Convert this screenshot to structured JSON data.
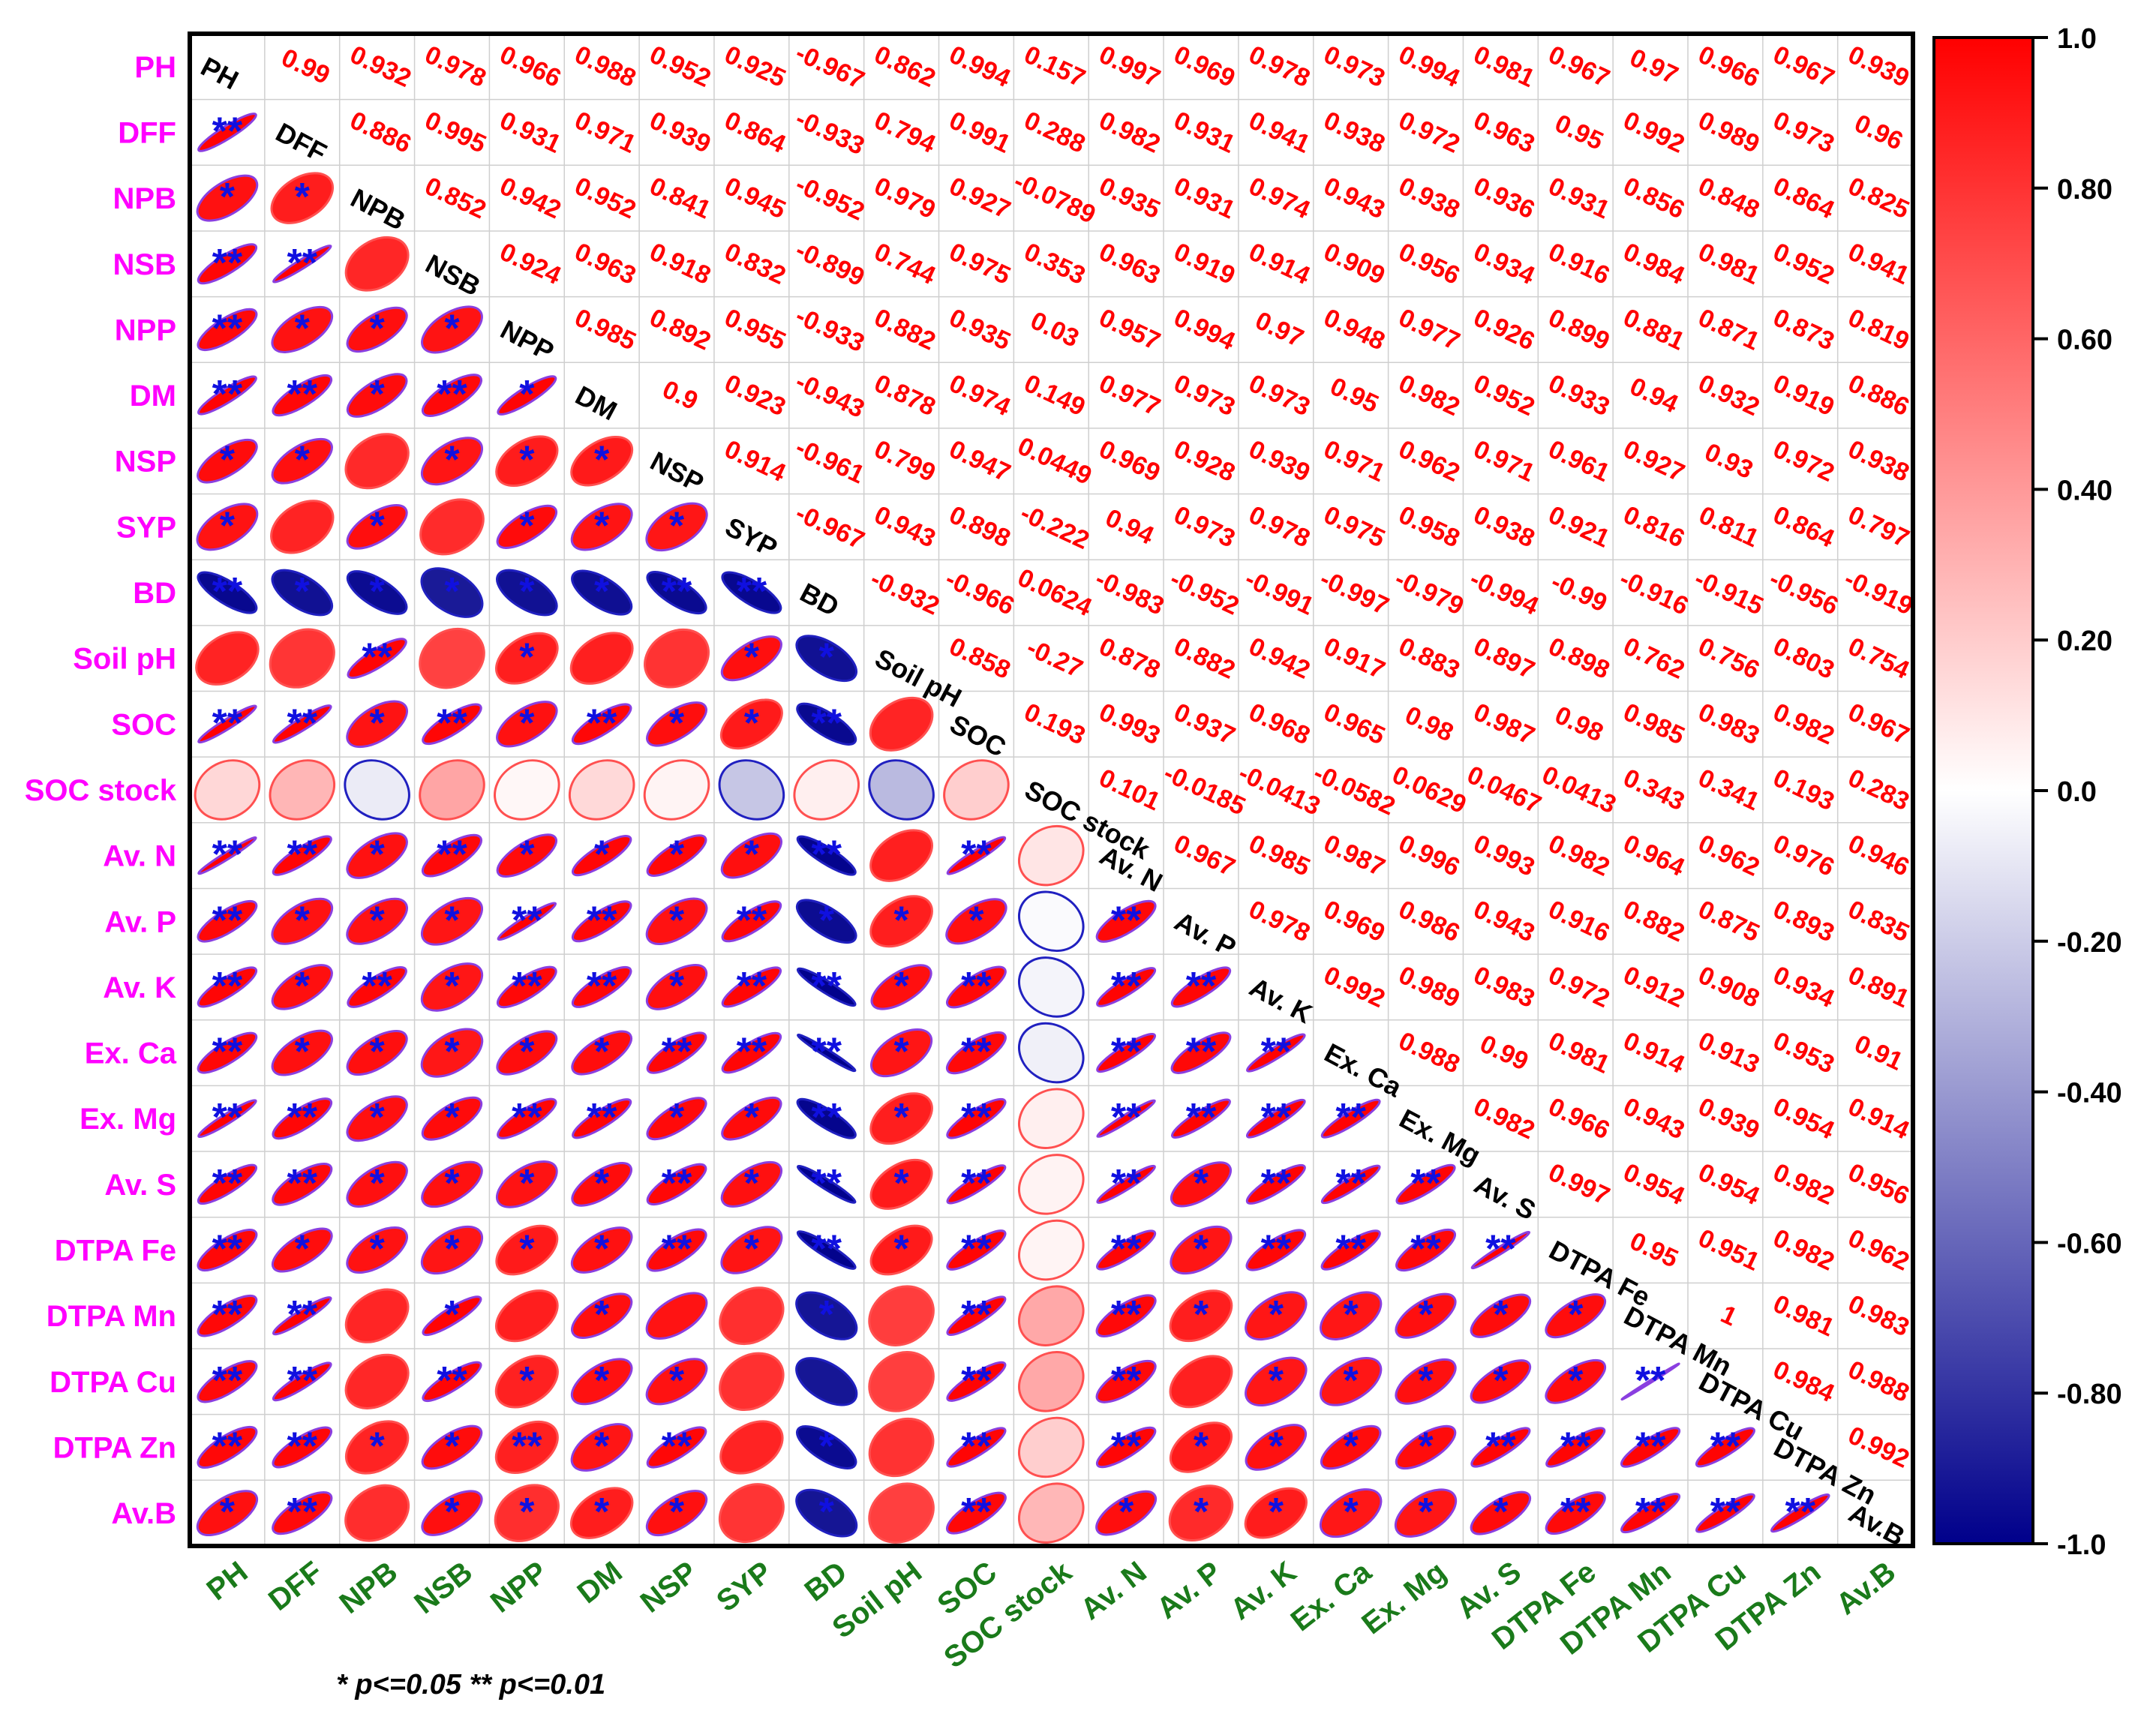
{
  "chart_data": {
    "type": "heatmap",
    "variables": [
      "PH",
      "DFF",
      "NPB",
      "NSB",
      "NPP",
      "DM",
      "NSP",
      "SYP",
      "BD",
      "Soil pH",
      "SOC",
      "SOC stock",
      "Av. N",
      "Av. P",
      "Av. K",
      "Ex. Ca",
      "Ex. Mg",
      "Av. S",
      "DTPA Fe",
      "DTPA Mn",
      "DTPA Cu",
      "DTPA Zn",
      "Av.B"
    ],
    "upper_labels": [
      [
        "0.99",
        "0.932",
        "0.978",
        "0.966",
        "0.988",
        "0.952",
        "0.925",
        "-0.967",
        "0.862",
        "0.994",
        "0.157",
        "0.997",
        "0.969",
        "0.978",
        "0.973",
        "0.994",
        "0.981",
        "0.967",
        "0.97",
        "0.966",
        "0.967",
        "0.939"
      ],
      [
        "0.886",
        "0.995",
        "0.931",
        "0.971",
        "0.939",
        "0.864",
        "-0.933",
        "0.794",
        "0.991",
        "0.288",
        "0.982",
        "0.931",
        "0.941",
        "0.938",
        "0.972",
        "0.963",
        "0.95",
        "0.992",
        "0.989",
        "0.973",
        "0.96"
      ],
      [
        "0.852",
        "0.942",
        "0.952",
        "0.841",
        "0.945",
        "-0.952",
        "0.979",
        "0.927",
        "-0.0789",
        "0.935",
        "0.931",
        "0.974",
        "0.943",
        "0.938",
        "0.936",
        "0.931",
        "0.856",
        "0.848",
        "0.864",
        "0.825"
      ],
      [
        "0.924",
        "0.963",
        "0.918",
        "0.832",
        "-0.899",
        "0.744",
        "0.975",
        "0.353",
        "0.963",
        "0.919",
        "0.914",
        "0.909",
        "0.956",
        "0.934",
        "0.916",
        "0.984",
        "0.981",
        "0.952",
        "0.941"
      ],
      [
        "0.985",
        "0.892",
        "0.955",
        "-0.933",
        "0.882",
        "0.935",
        "0.03",
        "0.957",
        "0.994",
        "0.97",
        "0.948",
        "0.977",
        "0.926",
        "0.899",
        "0.881",
        "0.871",
        "0.873",
        "0.819"
      ],
      [
        "0.9",
        "0.923",
        "-0.943",
        "0.878",
        "0.974",
        "0.149",
        "0.977",
        "0.973",
        "0.973",
        "0.95",
        "0.982",
        "0.952",
        "0.933",
        "0.94",
        "0.932",
        "0.919",
        "0.886"
      ],
      [
        "0.914",
        "-0.961",
        "0.799",
        "0.947",
        "0.0449",
        "0.969",
        "0.928",
        "0.939",
        "0.971",
        "0.962",
        "0.971",
        "0.961",
        "0.927",
        "0.93",
        "0.972",
        "0.938"
      ],
      [
        "-0.967",
        "0.943",
        "0.898",
        "-0.222",
        "0.94",
        "0.973",
        "0.978",
        "0.975",
        "0.958",
        "0.938",
        "0.921",
        "0.816",
        "0.811",
        "0.864",
        "0.797"
      ],
      [
        "-0.932",
        "-0.966",
        "0.0624",
        "-0.983",
        "-0.952",
        "-0.991",
        "-0.997",
        "-0.979",
        "-0.994",
        "-0.99",
        "-0.916",
        "-0.915",
        "-0.956",
        "-0.919"
      ],
      [
        "0.858",
        "-0.27",
        "0.878",
        "0.882",
        "0.942",
        "0.917",
        "0.883",
        "0.897",
        "0.898",
        "0.762",
        "0.756",
        "0.803",
        "0.754"
      ],
      [
        "0.193",
        "0.993",
        "0.937",
        "0.968",
        "0.965",
        "0.98",
        "0.987",
        "0.98",
        "0.985",
        "0.983",
        "0.982",
        "0.967"
      ],
      [
        "0.101",
        "-0.0185",
        "-0.0413",
        "-0.0582",
        "0.0629",
        "0.0467",
        "0.0413",
        "0.343",
        "0.341",
        "0.193",
        "0.283"
      ],
      [
        "0.967",
        "0.985",
        "0.987",
        "0.996",
        "0.993",
        "0.982",
        "0.964",
        "0.962",
        "0.976",
        "0.946"
      ],
      [
        "0.978",
        "0.969",
        "0.986",
        "0.943",
        "0.916",
        "0.882",
        "0.875",
        "0.893",
        "0.835"
      ],
      [
        "0.992",
        "0.989",
        "0.983",
        "0.972",
        "0.912",
        "0.908",
        "0.934",
        "0.891"
      ],
      [
        "0.988",
        "0.99",
        "0.981",
        "0.914",
        "0.913",
        "0.953",
        "0.91"
      ],
      [
        "0.982",
        "0.966",
        "0.943",
        "0.939",
        "0.954",
        "0.914"
      ],
      [
        "0.997",
        "0.954",
        "0.954",
        "0.982",
        "0.956"
      ],
      [
        "0.95",
        "0.951",
        "0.982",
        "0.962"
      ],
      [
        "1",
        "0.981",
        "0.983"
      ],
      [
        "0.984",
        "0.988"
      ],
      [
        "0.992"
      ]
    ],
    "significance": [
      [
        "**"
      ],
      [
        "*",
        "*"
      ],
      [
        "**",
        "**",
        ""
      ],
      [
        "**",
        "*",
        "*",
        "*"
      ],
      [
        "**",
        "**",
        "*",
        "**",
        "*"
      ],
      [
        "*",
        "*",
        "",
        "*",
        "*",
        "*"
      ],
      [
        "*",
        "",
        "*",
        "",
        "*",
        "*",
        "*"
      ],
      [
        "**",
        "*",
        "*",
        "*",
        "*",
        "*",
        "**",
        "**"
      ],
      [
        "",
        "",
        "**",
        "",
        "*",
        "",
        "",
        "*",
        "*"
      ],
      [
        "**",
        "**",
        "*",
        "**",
        "*",
        "**",
        "*",
        "*",
        "**",
        ""
      ],
      [
        "",
        "",
        "",
        "",
        "",
        "",
        "",
        "",
        "",
        "",
        ""
      ],
      [
        "**",
        "**",
        "*",
        "**",
        "*",
        "*",
        "*",
        "*",
        "**",
        "",
        "**",
        ""
      ],
      [
        "**",
        "*",
        "*",
        "*",
        "**",
        "**",
        "*",
        "**",
        "*",
        "*",
        "*",
        "",
        "**"
      ],
      [
        "**",
        "*",
        "**",
        "*",
        "**",
        "**",
        "*",
        "**",
        "**",
        "*",
        "**",
        "",
        "**",
        "**"
      ],
      [
        "**",
        "*",
        "*",
        "*",
        "*",
        "*",
        "**",
        "**",
        "**",
        "*",
        "**",
        "",
        "**",
        "**",
        "**"
      ],
      [
        "**",
        "**",
        "*",
        "*",
        "**",
        "**",
        "*",
        "*",
        "**",
        "*",
        "**",
        "",
        "**",
        "**",
        "**",
        "**"
      ],
      [
        "**",
        "**",
        "*",
        "*",
        "*",
        "*",
        "**",
        "*",
        "**",
        "*",
        "**",
        "",
        "**",
        "*",
        "**",
        "**",
        "**"
      ],
      [
        "**",
        "*",
        "*",
        "*",
        "*",
        "*",
        "**",
        "*",
        "**",
        "*",
        "**",
        "",
        "**",
        "*",
        "**",
        "**",
        "**",
        "**"
      ],
      [
        "**",
        "**",
        "",
        "*",
        "",
        "*",
        "",
        "",
        "*",
        "",
        "**",
        "",
        "**",
        "*",
        "*",
        "*",
        "*",
        "*",
        "*"
      ],
      [
        "**",
        "**",
        "",
        "**",
        "*",
        "*",
        "*",
        "",
        "",
        "",
        "**",
        "",
        "**",
        "",
        "*",
        "*",
        "*",
        "*",
        "*",
        "**"
      ],
      [
        "**",
        "**",
        "*",
        "*",
        "**",
        "*",
        "**",
        "",
        "*",
        "",
        "**",
        "",
        "**",
        "*",
        "*",
        "*",
        "*",
        "**",
        "**",
        "**",
        "**"
      ],
      [
        "*",
        "**",
        "",
        "*",
        "*",
        "*",
        "*",
        "",
        "*",
        "",
        "**",
        "",
        "*",
        "*",
        "*",
        "*",
        "*",
        "*",
        "**",
        "**",
        "**",
        "**"
      ]
    ],
    "lower_matrix": [
      [
        0.99
      ],
      [
        0.932,
        0.886
      ],
      [
        0.978,
        0.995,
        0.852
      ],
      [
        0.966,
        0.931,
        0.942,
        0.924
      ],
      [
        0.988,
        0.971,
        0.952,
        0.963,
        0.985
      ],
      [
        0.952,
        0.939,
        0.841,
        0.918,
        0.892,
        0.9
      ],
      [
        0.925,
        0.864,
        0.945,
        0.832,
        0.955,
        0.923,
        0.914
      ],
      [
        -0.967,
        -0.933,
        -0.952,
        -0.899,
        -0.933,
        -0.943,
        -0.961,
        -0.967
      ],
      [
        0.862,
        0.794,
        0.979,
        0.744,
        0.882,
        0.878,
        0.799,
        0.943,
        -0.932
      ],
      [
        0.994,
        0.991,
        0.927,
        0.975,
        0.935,
        0.974,
        0.947,
        0.898,
        -0.966,
        0.858
      ],
      [
        0.157,
        0.288,
        -0.0789,
        0.353,
        0.03,
        0.149,
        0.0449,
        -0.222,
        0.0624,
        -0.27,
        0.193
      ],
      [
        0.997,
        0.982,
        0.935,
        0.963,
        0.957,
        0.977,
        0.969,
        0.94,
        -0.983,
        0.878,
        0.993,
        0.101
      ],
      [
        0.969,
        0.931,
        0.931,
        0.919,
        0.994,
        0.973,
        0.928,
        0.973,
        -0.952,
        0.882,
        0.937,
        -0.0185,
        0.967
      ],
      [
        0.978,
        0.941,
        0.974,
        0.914,
        0.97,
        0.973,
        0.939,
        0.978,
        -0.991,
        0.942,
        0.968,
        -0.0413,
        0.985,
        0.978
      ],
      [
        0.973,
        0.938,
        0.943,
        0.909,
        0.948,
        0.95,
        0.971,
        0.975,
        -0.997,
        0.917,
        0.965,
        -0.0582,
        0.987,
        0.969,
        0.992
      ],
      [
        0.994,
        0.972,
        0.938,
        0.956,
        0.977,
        0.982,
        0.962,
        0.958,
        -0.979,
        0.883,
        0.98,
        0.0629,
        0.996,
        0.986,
        0.989,
        0.988
      ],
      [
        0.981,
        0.963,
        0.936,
        0.934,
        0.926,
        0.952,
        0.971,
        0.938,
        -0.994,
        0.897,
        0.987,
        0.0467,
        0.993,
        0.943,
        0.983,
        0.99,
        0.982
      ],
      [
        0.967,
        0.95,
        0.931,
        0.916,
        0.899,
        0.933,
        0.961,
        0.921,
        -0.99,
        0.898,
        0.98,
        0.0413,
        0.982,
        0.916,
        0.972,
        0.981,
        0.966,
        0.997
      ],
      [
        0.97,
        0.992,
        0.856,
        0.984,
        0.881,
        0.94,
        0.927,
        0.816,
        -0.916,
        0.762,
        0.985,
        0.343,
        0.964,
        0.882,
        0.912,
        0.914,
        0.943,
        0.954,
        0.95
      ],
      [
        0.966,
        0.989,
        0.848,
        0.981,
        0.871,
        0.932,
        0.93,
        0.811,
        -0.915,
        0.756,
        0.983,
        0.341,
        0.962,
        0.875,
        0.908,
        0.913,
        0.939,
        0.954,
        0.951,
        1
      ],
      [
        0.967,
        0.973,
        0.864,
        0.952,
        0.873,
        0.919,
        0.972,
        0.864,
        -0.956,
        0.803,
        0.982,
        0.193,
        0.976,
        0.893,
        0.934,
        0.953,
        0.954,
        0.982,
        0.982,
        0.981,
        0.984
      ],
      [
        0.939,
        0.96,
        0.825,
        0.941,
        0.819,
        0.886,
        0.938,
        0.797,
        -0.919,
        0.754,
        0.967,
        0.283,
        0.946,
        0.835,
        0.891,
        0.91,
        0.914,
        0.956,
        0.962,
        0.983,
        0.988,
        0.992
      ]
    ],
    "colorbar": {
      "ticks": [
        "1.0",
        "0.80",
        "0.60",
        "0.40",
        "0.20",
        "0.0",
        "-0.20",
        "-0.40",
        "-0.60",
        "-0.80",
        "-1.0"
      ],
      "min": -1,
      "max": 1
    },
    "colors": {
      "positive": "#ff0000",
      "negative": "#00008b",
      "row_label": "#ff00ff",
      "col_label": "#1a7a1a",
      "value_text": "#ff0000",
      "star": "#1010e0"
    },
    "footnote": "* p<=0.05  ** p<=0.01"
  }
}
